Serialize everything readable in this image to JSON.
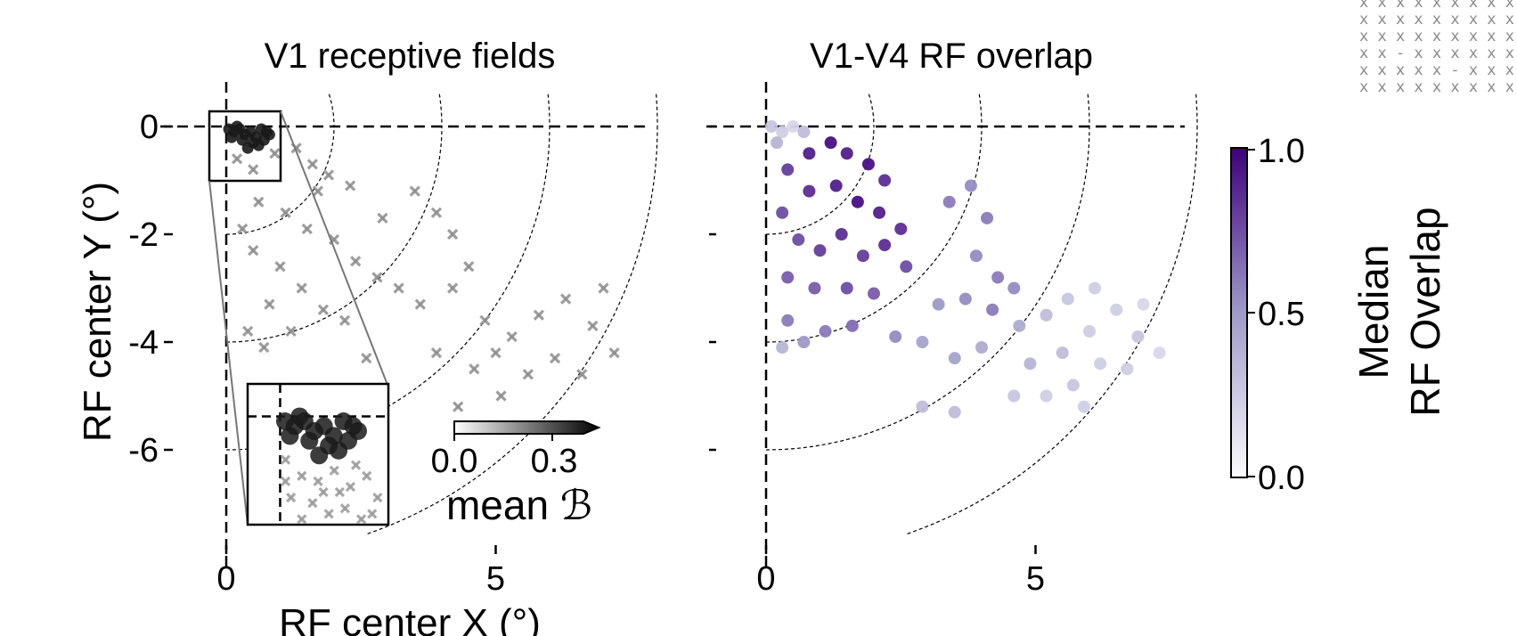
{
  "chart_data": [
    {
      "type": "scatter",
      "title": "V1 receptive fields",
      "xlabel": "RF center X (°)",
      "ylabel": "RF center Y (°)",
      "xlim": [
        -1.3,
        8.2
      ],
      "ylim": [
        -7.6,
        0.6
      ],
      "x_ticks": [
        "0",
        "5"
      ],
      "y_ticks": [
        "0",
        "-2",
        "-4",
        "-6"
      ],
      "marker": "x",
      "eccentricity_rings_deg": [
        2,
        4,
        6,
        8
      ],
      "inset": {
        "xlim": [
          -0.3,
          1.0
        ],
        "ylim": [
          -1.0,
          0.3
        ],
        "description_zoom": true
      },
      "colorbar": {
        "label": "mean ℬ",
        "ticks": [
          "0.0",
          "0.3"
        ],
        "range": [
          0.0,
          0.4
        ],
        "colormap": "gray_r"
      },
      "series": [
        {
          "name": "high mean B (dark circles)",
          "color": "#1a1a1a",
          "points": [
            [
              0.05,
              -0.05
            ],
            [
              0.15,
              -0.1
            ],
            [
              0.25,
              -0.05
            ],
            [
              0.35,
              -0.15
            ],
            [
              0.45,
              -0.1
            ],
            [
              0.55,
              -0.2
            ],
            [
              0.65,
              -0.05
            ],
            [
              0.75,
              -0.1
            ],
            [
              0.3,
              -0.25
            ],
            [
              0.5,
              -0.3
            ],
            [
              0.6,
              -0.35
            ],
            [
              0.4,
              -0.4
            ],
            [
              0.2,
              0.0
            ],
            [
              0.7,
              -0.25
            ],
            [
              0.8,
              -0.15
            ],
            [
              0.1,
              -0.2
            ]
          ]
        },
        {
          "name": "low mean B (gray crosses)",
          "color": "#8c8c8c",
          "points": [
            [
              0.2,
              -0.6
            ],
            [
              0.5,
              -0.8
            ],
            [
              0.9,
              -0.5
            ],
            [
              1.3,
              -0.4
            ],
            [
              1.6,
              -0.7
            ],
            [
              1.9,
              -0.9
            ],
            [
              2.3,
              -1.1
            ],
            [
              0.6,
              -1.4
            ],
            [
              1.1,
              -1.6
            ],
            [
              1.5,
              -1.9
            ],
            [
              2.0,
              -2.1
            ],
            [
              2.4,
              -2.5
            ],
            [
              2.8,
              -2.8
            ],
            [
              3.2,
              -3.0
            ],
            [
              3.6,
              -3.3
            ],
            [
              0.5,
              -2.3
            ],
            [
              1.0,
              -2.6
            ],
            [
              1.4,
              -3.0
            ],
            [
              0.8,
              -3.3
            ],
            [
              0.4,
              -3.8
            ],
            [
              0.7,
              -4.1
            ],
            [
              1.2,
              -3.8
            ],
            [
              1.8,
              -3.4
            ],
            [
              2.2,
              -3.6
            ],
            [
              3.5,
              -1.2
            ],
            [
              3.9,
              -1.6
            ],
            [
              4.2,
              -2.0
            ],
            [
              4.5,
              -2.6
            ],
            [
              4.2,
              -3.0
            ],
            [
              4.8,
              -3.6
            ],
            [
              5.3,
              -3.9
            ],
            [
              5.8,
              -3.5
            ],
            [
              6.3,
              -3.2
            ],
            [
              6.8,
              -3.7
            ],
            [
              7.2,
              -4.2
            ],
            [
              6.6,
              -4.6
            ],
            [
              6.1,
              -4.3
            ],
            [
              5.6,
              -4.6
            ],
            [
              5.1,
              -5.0
            ],
            [
              4.6,
              -4.5
            ],
            [
              4.3,
              -5.2
            ],
            [
              3.9,
              -4.2
            ],
            [
              2.9,
              -1.7
            ],
            [
              1.7,
              -1.2
            ],
            [
              0.3,
              -1.9
            ],
            [
              2.6,
              -4.3
            ],
            [
              5.0,
              -4.2
            ],
            [
              7.0,
              -3.0
            ]
          ]
        }
      ]
    },
    {
      "type": "scatter",
      "title": "V1-V4 RF overlap",
      "xlim": [
        -1.3,
        8.2
      ],
      "ylim": [
        -7.6,
        0.6
      ],
      "x_ticks": [
        "0",
        "5"
      ],
      "marker": "circle",
      "eccentricity_rings_deg": [
        2,
        4,
        6,
        8
      ],
      "colorbar": {
        "label_line1": "Median",
        "label_line2": "RF Overlap",
        "ticks": [
          "1.0",
          "0.5",
          "0.0"
        ],
        "range": [
          0.0,
          1.0
        ],
        "colormap": "Purples"
      },
      "points": [
        [
          0.1,
          0.0,
          0.25
        ],
        [
          0.3,
          -0.1,
          0.2
        ],
        [
          0.5,
          0.0,
          0.15
        ],
        [
          0.7,
          -0.1,
          0.3
        ],
        [
          0.2,
          -0.3,
          0.35
        ],
        [
          0.8,
          -0.5,
          0.9
        ],
        [
          1.2,
          -0.3,
          0.95
        ],
        [
          1.5,
          -0.5,
          0.9
        ],
        [
          1.9,
          -0.7,
          0.95
        ],
        [
          2.2,
          -1.0,
          0.85
        ],
        [
          0.4,
          -0.8,
          0.8
        ],
        [
          0.8,
          -1.2,
          0.85
        ],
        [
          1.3,
          -1.1,
          0.9
        ],
        [
          1.7,
          -1.4,
          0.95
        ],
        [
          2.1,
          -1.6,
          0.9
        ],
        [
          2.5,
          -1.9,
          0.85
        ],
        [
          0.3,
          -1.6,
          0.75
        ],
        [
          0.6,
          -2.1,
          0.75
        ],
        [
          1.0,
          -2.3,
          0.8
        ],
        [
          1.4,
          -2.0,
          0.85
        ],
        [
          1.8,
          -2.4,
          0.8
        ],
        [
          2.2,
          -2.2,
          0.85
        ],
        [
          2.6,
          -2.6,
          0.75
        ],
        [
          0.4,
          -2.8,
          0.7
        ],
        [
          0.9,
          -3.0,
          0.7
        ],
        [
          1.5,
          -3.0,
          0.75
        ],
        [
          2.0,
          -3.1,
          0.7
        ],
        [
          0.4,
          -3.6,
          0.6
        ],
        [
          0.7,
          -4.0,
          0.5
        ],
        [
          0.3,
          -4.1,
          0.35
        ],
        [
          1.1,
          -3.8,
          0.6
        ],
        [
          1.6,
          -3.7,
          0.65
        ],
        [
          2.4,
          -3.9,
          0.55
        ],
        [
          3.4,
          -1.4,
          0.6
        ],
        [
          3.8,
          -1.1,
          0.55
        ],
        [
          4.1,
          -1.7,
          0.6
        ],
        [
          3.9,
          -2.4,
          0.55
        ],
        [
          4.3,
          -2.8,
          0.6
        ],
        [
          4.6,
          -3.0,
          0.55
        ],
        [
          4.2,
          -3.4,
          0.6
        ],
        [
          3.7,
          -3.2,
          0.55
        ],
        [
          3.2,
          -3.3,
          0.5
        ],
        [
          2.9,
          -4.0,
          0.45
        ],
        [
          3.5,
          -4.3,
          0.45
        ],
        [
          4.0,
          -4.1,
          0.4
        ],
        [
          4.7,
          -3.7,
          0.4
        ],
        [
          5.2,
          -3.5,
          0.3
        ],
        [
          5.6,
          -3.2,
          0.25
        ],
        [
          6.1,
          -3.0,
          0.2
        ],
        [
          6.5,
          -3.4,
          0.2
        ],
        [
          6.9,
          -3.9,
          0.25
        ],
        [
          7.3,
          -4.2,
          0.15
        ],
        [
          6.7,
          -4.5,
          0.2
        ],
        [
          6.2,
          -4.4,
          0.2
        ],
        [
          5.7,
          -4.8,
          0.25
        ],
        [
          5.2,
          -5.0,
          0.2
        ],
        [
          4.6,
          -5.0,
          0.25
        ],
        [
          3.5,
          -5.3,
          0.3
        ],
        [
          2.9,
          -5.2,
          0.3
        ],
        [
          5.5,
          -4.2,
          0.3
        ],
        [
          4.9,
          -4.4,
          0.35
        ],
        [
          6.0,
          -3.8,
          0.2
        ],
        [
          7.0,
          -3.3,
          0.15
        ],
        [
          5.9,
          -5.2,
          0.2
        ]
      ]
    }
  ],
  "decoration": {
    "corner_pattern_rows": [
      "x x x x x x x x x x x",
      "x x x x x x x x x x x",
      "x x x x x x x x x x x",
      "x x - x x x x x x x x",
      "x x x x x - x x x x x",
      "x x x x x x x x x x x"
    ]
  },
  "colors": {
    "dark_marker": "#1a1a1a",
    "gray_marker": "#8c8c8c",
    "purple_high": "#3f007d",
    "purple_low": "#f2f0f7"
  }
}
